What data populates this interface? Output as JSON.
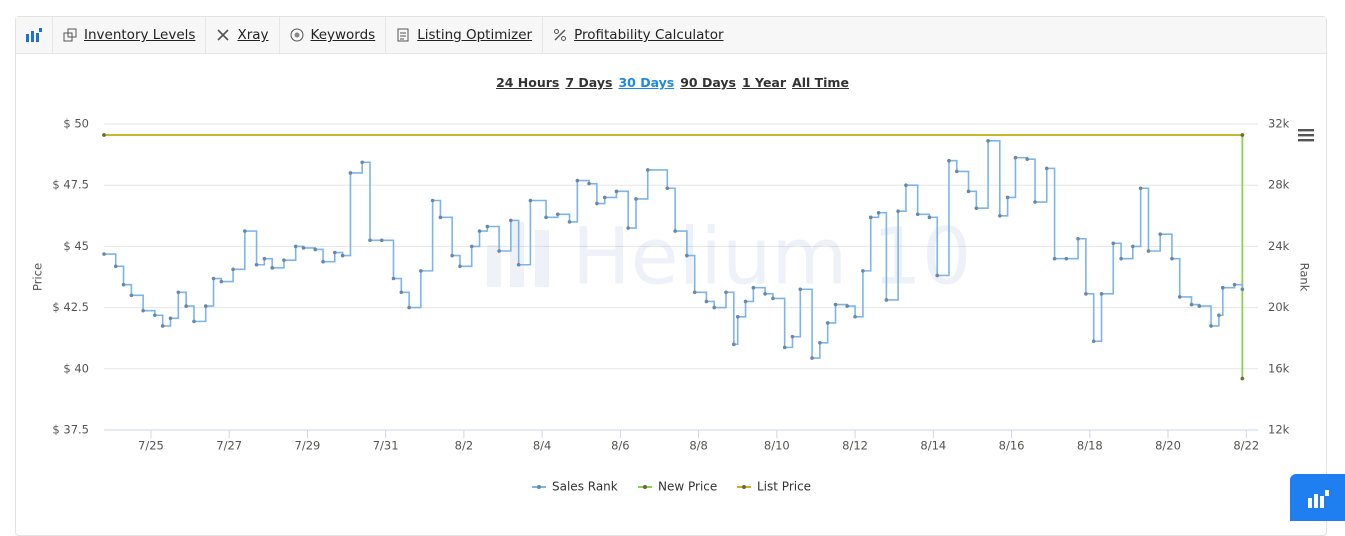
{
  "toolbar": [
    "Inventory Levels",
    "Xray",
    "Keywords",
    "Listing Optimizer",
    "Profitability Calculator"
  ],
  "ranges": [
    {
      "label": "24 Hours",
      "selected": false
    },
    {
      "label": "7 Days",
      "selected": false
    },
    {
      "label": "30 Days",
      "selected": true
    },
    {
      "label": "90 Days",
      "selected": false
    },
    {
      "label": "1 Year",
      "selected": false
    },
    {
      "label": "All Time",
      "selected": false
    }
  ],
  "watermark": "Helium 10",
  "chart_data": {
    "type": "line",
    "y_label": "Price",
    "y2_label": "Rank",
    "xlim": [
      23.8,
      53.3
    ],
    "xticks": [
      {
        "value": 25,
        "label": "7/25"
      },
      {
        "value": 27,
        "label": "7/27"
      },
      {
        "value": 29,
        "label": "7/29"
      },
      {
        "value": 31,
        "label": "7/31"
      },
      {
        "value": 33,
        "label": "8/2"
      },
      {
        "value": 35,
        "label": "8/4"
      },
      {
        "value": 37,
        "label": "8/6"
      },
      {
        "value": 39,
        "label": "8/8"
      },
      {
        "value": 41,
        "label": "8/10"
      },
      {
        "value": 43,
        "label": "8/12"
      },
      {
        "value": 45,
        "label": "8/14"
      },
      {
        "value": 47,
        "label": "8/16"
      },
      {
        "value": 49,
        "label": "8/18"
      },
      {
        "value": 51,
        "label": "8/20"
      },
      {
        "value": 53,
        "label": "8/22"
      }
    ],
    "ylim": [
      37.5,
      50
    ],
    "yticks": [
      {
        "value": 37.5,
        "label": "$ 37.5"
      },
      {
        "value": 40,
        "label": "$ 40"
      },
      {
        "value": 42.5,
        "label": "$ 42.5"
      },
      {
        "value": 45,
        "label": "$ 45"
      },
      {
        "value": 47.5,
        "label": "$ 47.5"
      },
      {
        "value": 50,
        "label": "$ 50"
      }
    ],
    "y2lim": [
      12000,
      32000
    ],
    "y2ticks": [
      {
        "value": 12000,
        "label": "12k"
      },
      {
        "value": 16000,
        "label": "16k"
      },
      {
        "value": 20000,
        "label": "20k"
      },
      {
        "value": 24000,
        "label": "24k"
      },
      {
        "value": 28000,
        "label": "28k"
      },
      {
        "value": 32000,
        "label": "32k"
      }
    ],
    "grid": true,
    "legend": "bottom",
    "series": [
      {
        "name": "Sales Rank",
        "color": "#7cb5ec",
        "axis": "y2",
        "step": true,
        "x": [
          23.8,
          24.1,
          24.3,
          24.5,
          24.8,
          25.1,
          25.3,
          25.5,
          25.7,
          25.9,
          26.1,
          26.4,
          26.6,
          26.8,
          27.1,
          27.4,
          27.7,
          27.9,
          28.1,
          28.4,
          28.7,
          28.9,
          29.2,
          29.4,
          29.7,
          29.9,
          30.1,
          30.4,
          30.6,
          30.9,
          31.2,
          31.4,
          31.6,
          31.9,
          32.2,
          32.4,
          32.7,
          32.9,
          33.2,
          33.4,
          33.6,
          33.9,
          34.2,
          34.4,
          34.7,
          35.1,
          35.4,
          35.7,
          35.9,
          36.2,
          36.4,
          36.6,
          36.9,
          37.2,
          37.4,
          37.7,
          38.2,
          38.4,
          38.7,
          38.9,
          39.2,
          39.4,
          39.7,
          39.9,
          40.0,
          40.2,
          40.4,
          40.7,
          40.9,
          41.2,
          41.4,
          41.6,
          41.9,
          42.1,
          42.3,
          42.5,
          42.8,
          43.0,
          43.2,
          43.4,
          43.6,
          43.8,
          44.1,
          44.3,
          44.6,
          44.9,
          45.1,
          45.4,
          45.6,
          45.9,
          46.1,
          46.4,
          46.7,
          46.9,
          47.1,
          47.4,
          47.6,
          47.9,
          48.1,
          48.4,
          48.7,
          48.9,
          49.1,
          49.3,
          49.6,
          49.8,
          50.1,
          50.3,
          50.5,
          50.8,
          51.1,
          51.3,
          51.6,
          51.8,
          52.1,
          52.3,
          52.4,
          52.7,
          52.9
        ],
        "values": [
          23500,
          22700,
          21500,
          20800,
          19800,
          19500,
          18800,
          19300,
          21000,
          20100,
          19100,
          20100,
          21900,
          21700,
          22500,
          25000,
          22800,
          23200,
          22600,
          23100,
          24000,
          23900,
          23800,
          23000,
          23600,
          23400,
          28800,
          29500,
          24400,
          24400,
          21900,
          21000,
          20000,
          22400,
          27000,
          25900,
          23400,
          22700,
          24000,
          25000,
          25300,
          23700,
          25700,
          22800,
          27000,
          25900,
          26100,
          25600,
          28300,
          28100,
          26800,
          27200,
          27600,
          25200,
          27100,
          29000,
          27800,
          25000,
          23400,
          21000,
          20400,
          20000,
          21000,
          17600,
          19400,
          20400,
          21300,
          20900,
          20600,
          17400,
          18100,
          21200,
          16700,
          17700,
          19000,
          20200,
          20100,
          19400,
          22400,
          25900,
          26200,
          20500,
          26300,
          28000,
          26100,
          25900,
          22100,
          29600,
          28900,
          27600,
          26500,
          30900,
          26000,
          27200,
          29800,
          29700,
          26900,
          29100,
          23200,
          23200,
          24500,
          20900,
          17800,
          20900,
          24200,
          23200,
          24000,
          27800,
          23700,
          24800,
          23200,
          20700,
          20200,
          20100,
          18800,
          19500,
          21300,
          21500,
          21200
        ]
      },
      {
        "name": "New Price",
        "color": "#8fd14f",
        "x": [
          23.8,
          52.9,
          52.9
        ],
        "values": [
          49.55,
          49.55,
          39.6
        ]
      },
      {
        "name": "List Price",
        "color": "#c8b41e",
        "x": [
          23.8,
          52.9
        ],
        "values": [
          49.55,
          49.55
        ]
      }
    ]
  }
}
